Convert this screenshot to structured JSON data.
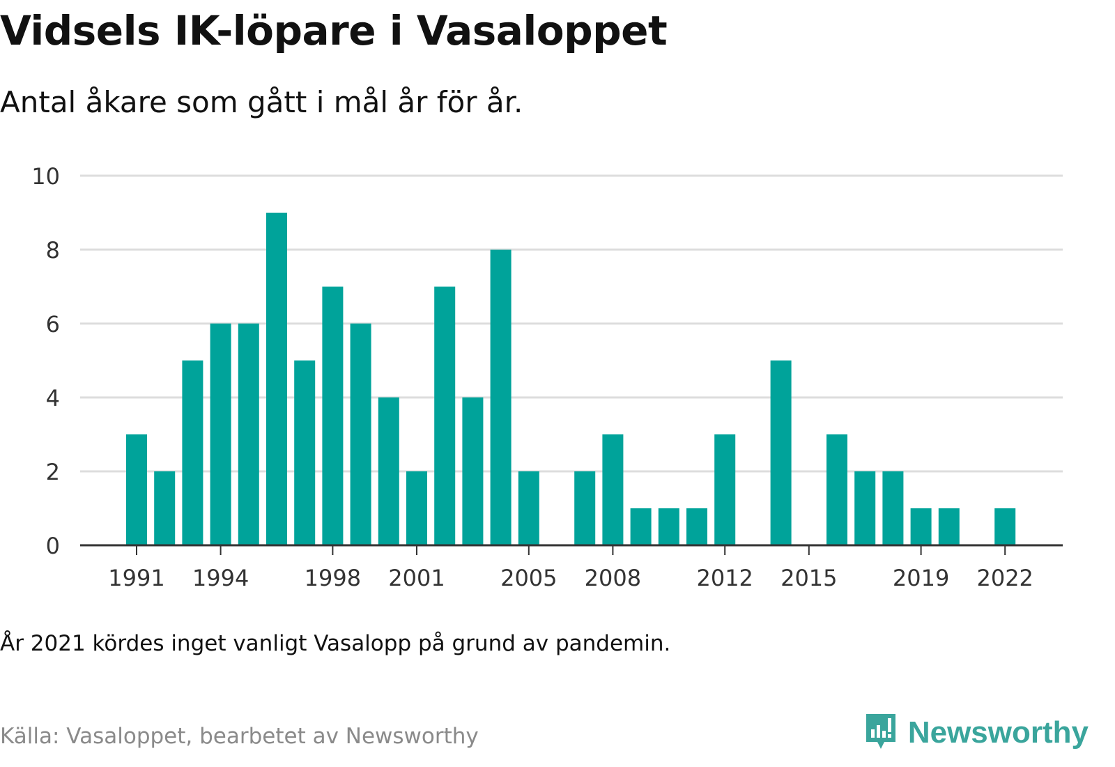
{
  "header": {
    "title": "Vidsels IK-löpare i Vasaloppet",
    "subtitle": "Antal åkare som gått i mål år för år."
  },
  "footer": {
    "note": "År 2021 kördes inget vanligt Vasalopp på grund av pandemin.",
    "source": "Källa: Vasaloppet, bearbetet av Newsworthy",
    "brand": "Newsworthy",
    "brand_icon": "newsworthy-logo-icon"
  },
  "colors": {
    "bar": "#00a39a",
    "grid": "#dddddd",
    "axis": "#333333",
    "brand": "#3aa59c"
  },
  "chart_data": {
    "type": "bar",
    "title": "Vidsels IK-löpare i Vasaloppet",
    "subtitle": "Antal åkare som gått i mål år för år.",
    "xlabel": "",
    "ylabel": "",
    "ylim": [
      0,
      10
    ],
    "y_ticks": [
      0,
      2,
      4,
      6,
      8,
      10
    ],
    "x_ticks": [
      1991,
      1994,
      1998,
      2001,
      2005,
      2008,
      2012,
      2015,
      2019,
      2022
    ],
    "grid": true,
    "categories": [
      1991,
      1992,
      1993,
      1994,
      1995,
      1996,
      1997,
      1998,
      1999,
      2000,
      2001,
      2002,
      2003,
      2004,
      2005,
      2006,
      2007,
      2008,
      2009,
      2010,
      2011,
      2012,
      2013,
      2014,
      2015,
      2016,
      2017,
      2018,
      2019,
      2020,
      2021,
      2022
    ],
    "values": [
      3,
      2,
      5,
      6,
      6,
      9,
      5,
      7,
      6,
      4,
      2,
      7,
      4,
      8,
      2,
      0,
      2,
      3,
      1,
      1,
      1,
      3,
      0,
      5,
      0,
      3,
      2,
      2,
      1,
      1,
      0,
      1
    ]
  }
}
